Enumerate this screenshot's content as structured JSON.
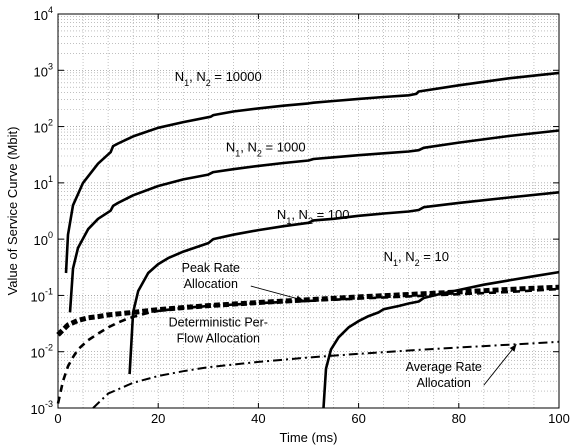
{
  "chart_data": {
    "type": "line",
    "title": "",
    "xlabel": "Time (ms)",
    "ylabel": "Value of Service Curve (Mbit)",
    "xlim": [
      0,
      100
    ],
    "ylim": [
      0.001,
      10000
    ],
    "yscale": "log",
    "grid": true,
    "grid_style": "dotted",
    "x_ticks": [
      "0",
      "20",
      "40",
      "60",
      "80",
      "100"
    ],
    "y_ticks": [
      {
        "base": "10",
        "exp": "-3"
      },
      {
        "base": "10",
        "exp": "-2"
      },
      {
        "base": "10",
        "exp": "-1"
      },
      {
        "base": "10",
        "exp": "0"
      },
      {
        "base": "10",
        "exp": "1"
      },
      {
        "base": "10",
        "exp": "2"
      },
      {
        "base": "10",
        "exp": "3"
      },
      {
        "base": "10",
        "exp": "4"
      }
    ],
    "series": [
      {
        "label_lines": [
          "N1, N2 = 10000"
        ],
        "style": "solid-thick",
        "x": [
          1.6,
          2,
          3,
          5,
          8,
          10.5,
          11,
          12,
          15,
          20,
          25,
          30.5,
          31,
          35,
          40,
          45,
          50,
          51,
          55,
          60,
          65,
          70,
          71.5,
          72,
          80,
          90,
          100
        ],
        "y": [
          0.25,
          1.2,
          4,
          10,
          22,
          35,
          45,
          50,
          67,
          95,
          120,
          150,
          160,
          185,
          210,
          235,
          258,
          265,
          285,
          310,
          335,
          360,
          380,
          420,
          540,
          720,
          900
        ]
      },
      {
        "label_lines": [
          "N1, N2 = 1000"
        ],
        "style": "solid-thick",
        "x": [
          2.4,
          3,
          4,
          6,
          8,
          10.5,
          11,
          12,
          15,
          20,
          25,
          30,
          31,
          35,
          40,
          45,
          50,
          51,
          55,
          60,
          65,
          70,
          72,
          73,
          80,
          90,
          100
        ],
        "y": [
          0.05,
          0.3,
          0.7,
          1.5,
          2.3,
          3.2,
          3.9,
          4.4,
          6,
          8.8,
          11.5,
          14,
          15.5,
          17.5,
          20,
          22.5,
          25,
          26.5,
          28.5,
          31,
          33.5,
          36,
          38,
          42,
          52,
          68,
          85
        ]
      },
      {
        "label_lines": [
          "N1, N2 = 100"
        ],
        "style": "solid-thick",
        "x": [
          14.3,
          15,
          16,
          18,
          20,
          22,
          25,
          30,
          31,
          35,
          40,
          45,
          50,
          51,
          55,
          60,
          65,
          70,
          72,
          73,
          80,
          90,
          100
        ],
        "y": [
          0.004,
          0.05,
          0.12,
          0.25,
          0.36,
          0.46,
          0.6,
          0.85,
          1.0,
          1.2,
          1.45,
          1.7,
          1.95,
          2.15,
          2.3,
          2.6,
          2.85,
          3.1,
          3.3,
          3.7,
          4.4,
          5.5,
          6.8
        ]
      },
      {
        "label_lines": [
          "N1, N2 = 10"
        ],
        "style": "solid-thick",
        "x": [
          53,
          53.5,
          54.5,
          56,
          58,
          60,
          62,
          64,
          65,
          68,
          70,
          72,
          73,
          76,
          80,
          85,
          90,
          95,
          100
        ],
        "y": [
          0.001,
          0.005,
          0.011,
          0.018,
          0.027,
          0.035,
          0.043,
          0.05,
          0.057,
          0.065,
          0.072,
          0.078,
          0.09,
          0.105,
          0.125,
          0.155,
          0.185,
          0.22,
          0.26
        ]
      },
      {
        "label_lines": [
          "Peak Rate",
          "Allocation"
        ],
        "style": "dashed-heavy",
        "x": [
          0,
          2,
          4,
          6,
          8,
          10,
          15,
          20,
          30,
          40,
          50,
          60,
          70,
          80,
          90,
          100
        ],
        "y": [
          0.02,
          0.03,
          0.036,
          0.04,
          0.042,
          0.045,
          0.05,
          0.056,
          0.066,
          0.075,
          0.084,
          0.094,
          0.104,
          0.115,
          0.128,
          0.14
        ]
      },
      {
        "label_lines": [
          "Deterministic Per-",
          "Flow Allocation"
        ],
        "style": "dashed",
        "x": [
          0,
          1,
          2,
          3,
          4,
          6,
          8,
          10,
          12,
          14,
          16,
          18,
          20,
          25,
          30,
          40,
          50,
          60,
          70,
          80,
          90,
          100
        ],
        "y": [
          0.0012,
          0.003,
          0.0055,
          0.008,
          0.011,
          0.016,
          0.021,
          0.027,
          0.033,
          0.039,
          0.044,
          0.049,
          0.053,
          0.06,
          0.065,
          0.073,
          0.08,
          0.088,
          0.096,
          0.105,
          0.115,
          0.13
        ]
      },
      {
        "label_lines": [
          "Average Rate",
          "Allocation"
        ],
        "style": "dash-dot",
        "x": [
          7,
          10,
          15,
          20,
          25,
          30,
          40,
          50,
          60,
          70,
          80,
          90,
          100
        ],
        "y": [
          0.001,
          0.0018,
          0.0028,
          0.0037,
          0.0045,
          0.0053,
          0.0066,
          0.0079,
          0.0092,
          0.0105,
          0.0119,
          0.0133,
          0.015
        ]
      }
    ],
    "annotations": [
      {
        "lines": [
          "N",
          "1",
          ", N",
          "2",
          " = 10000"
        ],
        "x": 23.3,
        "y": 650,
        "anchor": "start"
      },
      {
        "lines": [
          "N",
          "1",
          ", N",
          "2",
          " = 1000"
        ],
        "x": 33.5,
        "y": 36,
        "anchor": "start"
      },
      {
        "lines": [
          "N",
          "1",
          ", N",
          "2",
          " = 100"
        ],
        "x": 43.7,
        "y": 2.3,
        "anchor": "start"
      },
      {
        "lines": [
          "N",
          "1",
          ", N",
          "2",
          " = 10"
        ],
        "x": 65,
        "y": 0.41,
        "anchor": "start"
      },
      {
        "lines": [
          "Peak Rate",
          "Allocation"
        ],
        "x": 30.5,
        "y": 0.26,
        "anchor": "middle",
        "arrow_to": {
          "x": 49,
          "y": 0.082
        }
      },
      {
        "lines": [
          "Deterministic Per-",
          "Flow Allocation"
        ],
        "x": 32,
        "y": 0.028,
        "anchor": "middle"
      },
      {
        "lines": [
          "Average Rate",
          "Allocation"
        ],
        "x": 77,
        "y": 0.0045,
        "anchor": "middle",
        "arrow_to": {
          "x": 91.5,
          "y": 0.0135
        }
      }
    ]
  }
}
